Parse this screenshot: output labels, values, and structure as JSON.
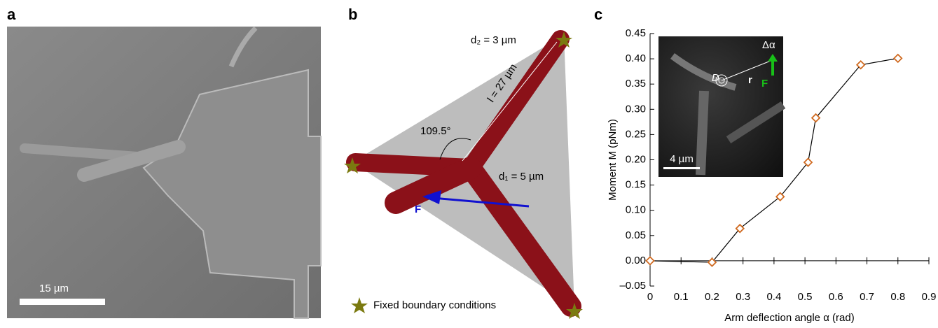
{
  "panels": {
    "a": {
      "label": "a",
      "scale_bar": "15 µm"
    },
    "b": {
      "label": "b",
      "d2": "d₂ = 3 µm",
      "length": "l = 27 µm",
      "angle": "109.5°",
      "d1": "d₁ = 5 µm",
      "force": "F",
      "legend": "Fixed boundary conditions"
    },
    "c": {
      "label": "c",
      "inset": {
        "D": "D",
        "r": "r",
        "F": "F",
        "delta": "Δα",
        "scale_bar": "4 µm"
      }
    }
  },
  "chart_data": {
    "type": "line",
    "x_label": "Arm deflection angle α (rad)",
    "y_label": "Moment M (pNm)",
    "x": [
      0,
      0.2,
      0.29,
      0.42,
      0.51,
      0.535,
      0.68,
      0.8
    ],
    "series": [
      {
        "color": "#d06a20",
        "values": [
          0.0,
          -0.003,
          0.064,
          0.127,
          0.195,
          0.283,
          0.388,
          0.401
        ]
      }
    ],
    "xlim": [
      0,
      0.9
    ],
    "xticks": [
      0,
      0.1,
      0.2,
      0.3,
      0.4,
      0.5,
      0.6,
      0.7,
      0.8,
      0.9
    ],
    "ylim": [
      -0.05,
      0.45
    ],
    "yticks": [
      {
        "value": -0.05,
        "label": "–0.05"
      },
      {
        "value": 0,
        "label": "0.00"
      },
      0.05,
      {
        "value": 0.1,
        "label": "0.10"
      },
      0.15,
      {
        "value": 0.2,
        "label": "0.20"
      },
      0.25,
      {
        "value": 0.3,
        "label": "0.30"
      },
      0.35,
      {
        "value": 0.4,
        "label": "0.40"
      },
      0.45
    ]
  }
}
